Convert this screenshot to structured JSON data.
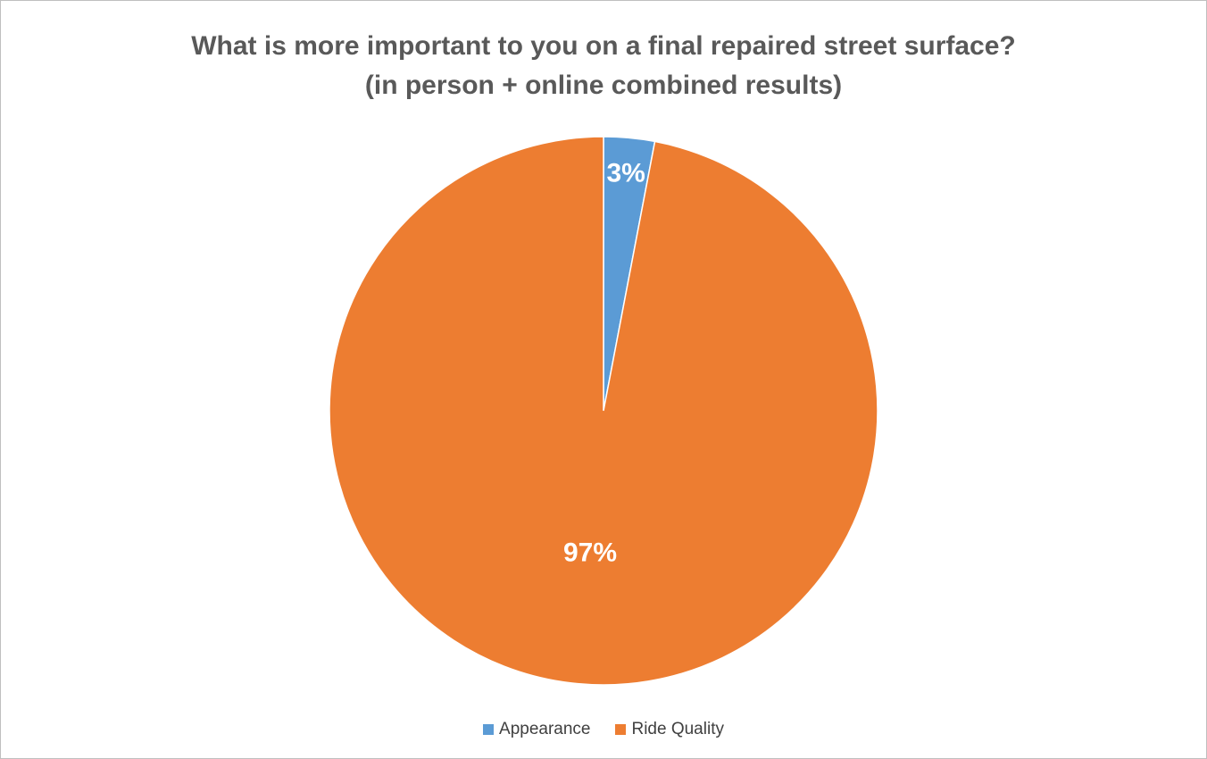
{
  "chart_data": {
    "type": "pie",
    "title_line1": "What is more important to you on a final repaired street surface?",
    "title_line2": "(in person + online combined results)",
    "categories": [
      "Appearance",
      "Ride Quality"
    ],
    "values": [
      3,
      97
    ],
    "value_labels": [
      "3%",
      "97%"
    ],
    "colors": [
      "#5b9bd5",
      "#ed7d31"
    ],
    "legend_position": "bottom"
  }
}
